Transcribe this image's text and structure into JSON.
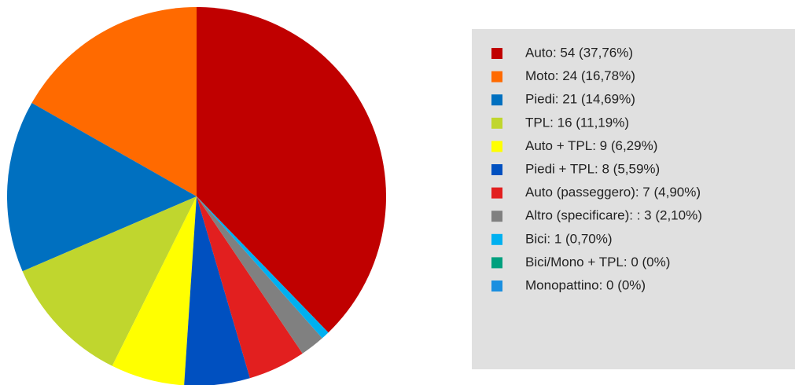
{
  "chart_data": {
    "type": "pie",
    "categories": [
      "Auto: 54 (37,76%)",
      "Moto: 24 (16,78%)",
      "Piedi: 21 (14,69%)",
      "TPL: 16 (11,19%)",
      "Auto + TPL: 9 (6,29%)",
      "Piedi + TPL: 8 (5,59%)",
      "Auto (passeggero): 7 (4,90%)",
      "Altro (specificare): : 3 (2,10%)",
      "Bici: 1 (0,70%)",
      "Bici/Mono + TPL: 0 (0%)",
      "Monopattino: 0 (0%)"
    ],
    "values": [
      54,
      24,
      21,
      16,
      9,
      8,
      7,
      3,
      1,
      0,
      0
    ],
    "colors": [
      "#c00000",
      "#ff6a00",
      "#0070c0",
      "#c0d62e",
      "#ffff00",
      "#0050c0",
      "#e21f1f",
      "#808080",
      "#00b0f0",
      "#00a07e",
      "#1a8fe0"
    ]
  }
}
